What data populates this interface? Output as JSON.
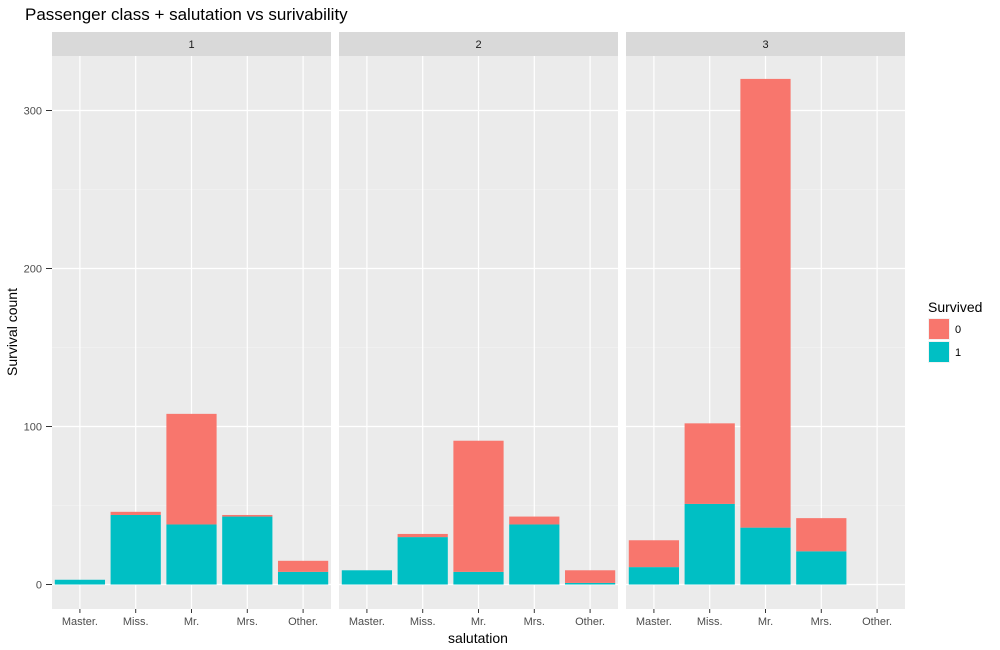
{
  "chart_data": {
    "type": "bar",
    "stacked": true,
    "faceted": true,
    "title": "Passenger class + salutation vs surivability",
    "xlabel": "salutation",
    "ylabel": "Survival count",
    "categories": [
      "Master.",
      "Miss.",
      "Mr.",
      "Mrs.",
      "Other."
    ],
    "ylim": [
      0,
      330
    ],
    "yticks": [
      0,
      100,
      200,
      300
    ],
    "grid": true,
    "legend": {
      "title": "Survived",
      "position": "right",
      "entries": [
        {
          "label": "0",
          "color": "#F8766D"
        },
        {
          "label": "1",
          "color": "#00BFC4"
        }
      ]
    },
    "facets": [
      {
        "label": "1",
        "series": [
          {
            "name": "0",
            "values": [
              0,
              2,
              70,
              1,
              7
            ]
          },
          {
            "name": "1",
            "values": [
              3,
              44,
              38,
              43,
              8
            ]
          }
        ]
      },
      {
        "label": "2",
        "series": [
          {
            "name": "0",
            "values": [
              0,
              2,
              83,
              5,
              8
            ]
          },
          {
            "name": "1",
            "values": [
              9,
              30,
              8,
              38,
              1
            ]
          }
        ]
      },
      {
        "label": "3",
        "series": [
          {
            "name": "0",
            "values": [
              17,
              51,
              284,
              21,
              0
            ]
          },
          {
            "name": "1",
            "values": [
              11,
              51,
              36,
              21,
              0
            ]
          }
        ]
      }
    ]
  }
}
